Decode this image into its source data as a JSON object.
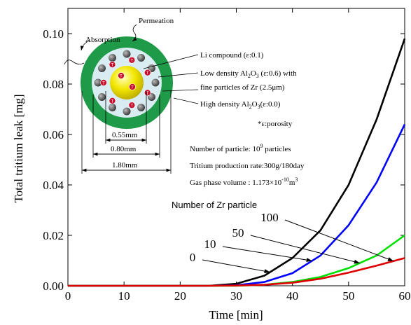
{
  "chart_data": {
    "type": "line",
    "x_label": "Time [min]",
    "y_label": "Total tritium leak [mg]",
    "x": [
      0,
      5,
      10,
      15,
      20,
      25,
      30,
      35,
      40,
      45,
      50,
      55,
      60
    ],
    "series": [
      {
        "name": "0",
        "color": "#000000",
        "values": [
          0,
          0,
          0,
          0,
          0,
          0,
          0.0008,
          0.004,
          0.011,
          0.022,
          0.04,
          0.066,
          0.098
        ]
      },
      {
        "name": "10",
        "color": "#0000ff",
        "values": [
          0,
          0,
          0,
          0,
          0,
          0,
          0.0002,
          0.0015,
          0.005,
          0.012,
          0.024,
          0.041,
          0.064
        ]
      },
      {
        "name": "50",
        "color": "#00e000",
        "values": [
          0,
          0,
          0,
          0,
          0,
          0,
          0,
          0.0004,
          0.0015,
          0.0035,
          0.007,
          0.012,
          0.02
        ]
      },
      {
        "name": "100",
        "color": "#e00000",
        "values": [
          0,
          0,
          0,
          0,
          0,
          0,
          0.0001,
          0.0004,
          0.0012,
          0.0028,
          0.0052,
          0.008,
          0.011
        ]
      }
    ],
    "legend_title": "Number of Zr particle",
    "xlim": [
      0,
      60
    ],
    "ylim": [
      0,
      0.11
    ],
    "xticks": [
      0,
      10,
      20,
      30,
      40,
      50,
      60
    ],
    "yticks": [
      {
        "value": 0,
        "label": "0.00"
      },
      {
        "value": 0.02,
        "label": "0.02"
      },
      {
        "value": 0.04,
        "label": "0.04"
      },
      {
        "value": 0.06,
        "label": "0.06"
      },
      {
        "value": 0.08,
        "label": "0.08"
      },
      {
        "value": 0.1,
        "label": "0.10"
      }
    ],
    "inset": {
      "permeation": "Permeation",
      "absorption": "Absorption",
      "particle_label": "T",
      "li_compound": "Li compound (ε:0.1)",
      "low_density": [
        "Low density Al",
        "2",
        "O",
        "3",
        " (ε:0.6) with"
      ],
      "fine_particles": "fine particles of Zr (2.5μm)",
      "high_density": [
        "High density Al",
        "2",
        "O",
        "3",
        "(ε:0.0)"
      ],
      "porosity": "*ε:porosity",
      "dim_inner": "0.55mm",
      "dim_middle": "0.80mm",
      "dim_outer": "1.80mm",
      "particle_count": [
        "Number of particle: 10",
        "9",
        " particles"
      ],
      "production_rate": "Tritium production rate:300g/180day",
      "gas_volume": [
        "Gas phase volume : 1.173×10",
        "-10",
        "m",
        "3"
      ]
    }
  }
}
